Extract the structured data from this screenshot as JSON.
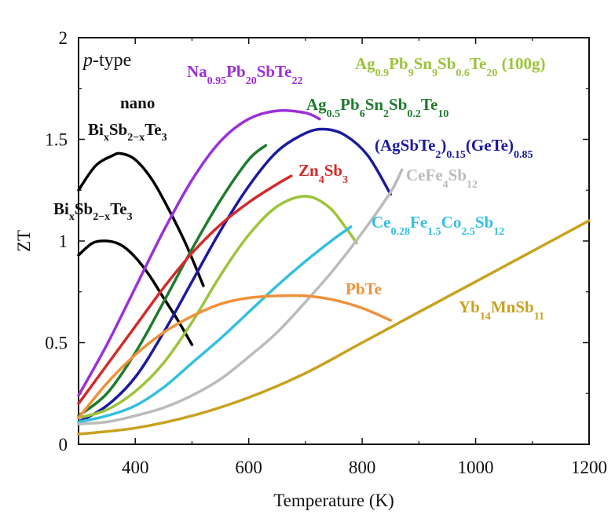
{
  "chart_data": {
    "type": "line",
    "title": "",
    "xlabel": "Temperature (K)",
    "ylabel": "ZT",
    "xlim": [
      300,
      1200
    ],
    "ylim": [
      0,
      2
    ],
    "xticks": [
      400,
      600,
      800,
      1000,
      1200
    ],
    "yticks": [
      0,
      0.5,
      1,
      1.5,
      2
    ],
    "ytick_labels": [
      "0",
      "0.5",
      "1",
      "1.5",
      "2"
    ],
    "annotation": "p-type",
    "grid": false,
    "legend": "inline labels",
    "series": [
      {
        "name": "nano Bi_xSb_{2-x}Te_3",
        "color": "#000000",
        "x": [
          300,
          330,
          360,
          375,
          400,
          430,
          460,
          490,
          520
        ],
        "y": [
          1.25,
          1.37,
          1.42,
          1.43,
          1.4,
          1.3,
          1.15,
          0.98,
          0.78
        ]
      },
      {
        "name": "Bi_xSb_{2-x}Te_3",
        "color": "#000000",
        "x": [
          300,
          325,
          350,
          375,
          400,
          425,
          450,
          475,
          500
        ],
        "y": [
          0.93,
          0.99,
          1.0,
          0.98,
          0.92,
          0.83,
          0.72,
          0.61,
          0.49
        ]
      },
      {
        "name": "Na_{0.95}Pb_{20}SbTe_{22}",
        "color": "#9b30d9",
        "x": [
          300,
          350,
          400,
          450,
          500,
          550,
          600,
          650,
          700,
          725
        ],
        "y": [
          0.24,
          0.49,
          0.77,
          1.05,
          1.3,
          1.49,
          1.6,
          1.64,
          1.63,
          1.6
        ]
      },
      {
        "name": "Ag_{0.5}Pb_6Sn_2Sb_{0.2}Te_{10}",
        "color": "#1e7b2e",
        "x": [
          300,
          350,
          400,
          450,
          500,
          550,
          600,
          630
        ],
        "y": [
          0.14,
          0.25,
          0.45,
          0.7,
          0.96,
          1.2,
          1.4,
          1.47
        ]
      },
      {
        "name": "(AgSbTe_2)_{0.15}(GeTe)_{0.85}",
        "color": "#1a1aa0",
        "x": [
          300,
          350,
          400,
          450,
          500,
          550,
          600,
          650,
          700,
          735,
          770,
          810,
          850
        ],
        "y": [
          0.11,
          0.19,
          0.33,
          0.55,
          0.8,
          1.05,
          1.27,
          1.44,
          1.53,
          1.55,
          1.52,
          1.42,
          1.23
        ]
      },
      {
        "name": "Zn_4Sb_3",
        "color": "#d42a2a",
        "x": [
          300,
          350,
          400,
          450,
          500,
          550,
          600,
          650,
          675
        ],
        "y": [
          0.2,
          0.39,
          0.58,
          0.77,
          0.94,
          1.08,
          1.19,
          1.28,
          1.32
        ]
      },
      {
        "name": "Ag_{0.9}Pb_9Sn_9Sb_{0.6}Te_{20} (100g)",
        "color": "#9cc43a",
        "x": [
          300,
          350,
          400,
          450,
          500,
          550,
          600,
          650,
          700,
          740,
          770,
          790
        ],
        "y": [
          0.13,
          0.17,
          0.26,
          0.4,
          0.6,
          0.83,
          1.03,
          1.17,
          1.22,
          1.17,
          1.07,
          0.99
        ]
      },
      {
        "name": "Ce_{0.28}Fe_{1.5}Co_{2.5}Sb_{12}",
        "color": "#33bfe0",
        "x": [
          300,
          350,
          400,
          450,
          500,
          550,
          600,
          650,
          700,
          750,
          780
        ],
        "y": [
          0.11,
          0.14,
          0.19,
          0.28,
          0.4,
          0.52,
          0.65,
          0.78,
          0.9,
          1.01,
          1.07
        ]
      },
      {
        "name": "CeFe_4Sb_{12}",
        "color": "#bbbbbb",
        "x": [
          300,
          350,
          400,
          450,
          500,
          550,
          600,
          650,
          700,
          750,
          800,
          850,
          870
        ],
        "y": [
          0.1,
          0.11,
          0.14,
          0.18,
          0.24,
          0.32,
          0.43,
          0.55,
          0.7,
          0.86,
          1.04,
          1.24,
          1.35
        ]
      },
      {
        "name": "PbTe",
        "color": "#f0913a",
        "x": [
          300,
          350,
          400,
          450,
          500,
          550,
          600,
          650,
          700,
          750,
          800,
          850
        ],
        "y": [
          0.13,
          0.3,
          0.44,
          0.55,
          0.63,
          0.69,
          0.72,
          0.73,
          0.73,
          0.71,
          0.67,
          0.61
        ]
      },
      {
        "name": "Yb_{14}MnSb_{11}",
        "color": "#c8a21e",
        "x": [
          300,
          400,
          500,
          600,
          700,
          800,
          900,
          1000,
          1100,
          1200
        ],
        "y": [
          0.05,
          0.08,
          0.14,
          0.23,
          0.35,
          0.5,
          0.65,
          0.8,
          0.95,
          1.1
        ]
      }
    ]
  },
  "labels": {
    "nano_bst": {
      "line1": "nano",
      "base1": "Bi",
      "sub1": "x",
      "base2": "Sb",
      "sub2": "2−x",
      "base3": "Te",
      "sub3": "3"
    },
    "bst": {
      "base1": "Bi",
      "sub1": "x",
      "base2": "Sb",
      "sub2": "2−x",
      "base3": "Te",
      "sub3": "3"
    },
    "napb": {
      "b1": "Na",
      "s1": "0.95",
      "b2": "Pb",
      "s2": "20",
      "b3": "SbTe",
      "s3": "22"
    },
    "agpbsn100g": {
      "b1": "Ag",
      "s1": "0.9",
      "b2": "Pb",
      "s2": "9",
      "b3": "Sn",
      "s3": "9",
      "b4": "Sb",
      "s4": "0.6",
      "b5": "Te",
      "s5": "20",
      "tail": " (100g)"
    },
    "agpb6": {
      "b1": "Ag",
      "s1": "0.5",
      "b2": "Pb",
      "s2": "6",
      "b3": "Sn",
      "s3": "2",
      "b4": "Sb",
      "s4": "0.2",
      "b5": "Te",
      "s5": "10"
    },
    "agsbte": {
      "b1": "(AgSbTe",
      "s1": "2",
      "b2": ")",
      "s2": "0.15",
      "b3": "(GeTe)",
      "s3": "0.85"
    },
    "zn": {
      "b1": "Zn",
      "s1": "4",
      "b2": "Sb",
      "s2": "3"
    },
    "cefe": {
      "b1": "CeFe",
      "s1": "4",
      "b2": "Sb",
      "s2": "12"
    },
    "ceco": {
      "b1": "Ce",
      "s1": "0.28",
      "b2": "Fe",
      "s2": "1.5",
      "b3": "Co",
      "s3": "2.5",
      "b4": "Sb",
      "s4": "12"
    },
    "pbte": {
      "text": "PbTe"
    },
    "yb": {
      "b1": "Yb",
      "s1": "14",
      "b2": "MnSb",
      "s2": "11"
    }
  }
}
